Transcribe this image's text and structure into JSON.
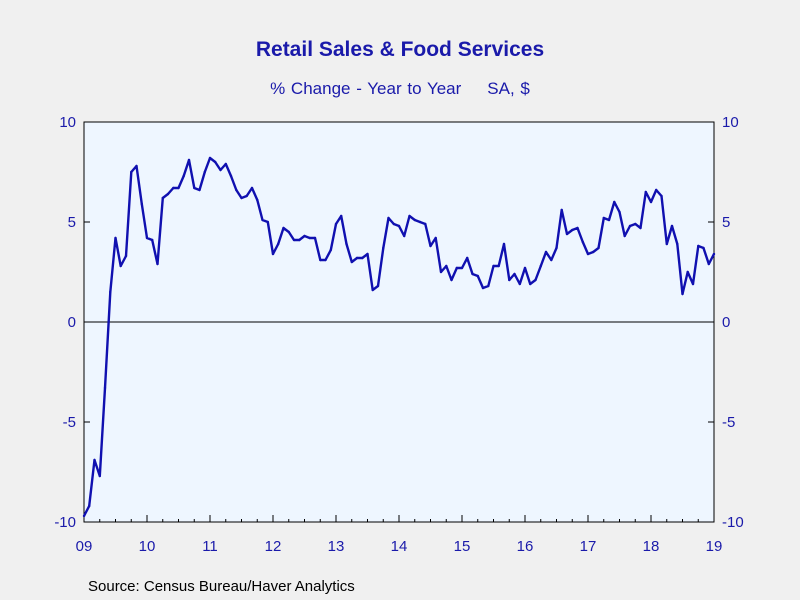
{
  "title": "Retail Sales & Food Services",
  "subtitle_left": "% Change - Year to Year",
  "subtitle_right": "SA, $",
  "source": "Source:  Census Bureau/Haver Analytics",
  "colors": {
    "line": "#1010b0",
    "plot_bg": "#eef6ff",
    "page_bg": "#f0f0f0",
    "title": "#1a1aaa",
    "tick_label": "#1a1aaa"
  },
  "chart_data": {
    "type": "line",
    "title": "Retail Sales & Food Services",
    "subtitle": "% Change - Year to Year    SA, $",
    "xlabel": "",
    "ylabel": "",
    "xlim": [
      2009.0,
      2019.0
    ],
    "ylim": [
      -10,
      10
    ],
    "yticks": [
      -10,
      -5,
      0,
      5,
      10
    ],
    "xtick_labels": [
      "09",
      "10",
      "11",
      "12",
      "13",
      "14",
      "15",
      "16",
      "17",
      "18",
      "19"
    ],
    "secondary_y_axis": true,
    "zero_line": true,
    "grid": false,
    "series": [
      {
        "start": "2009-01",
        "frequency": "monthly",
        "values": [
          -9.7,
          -9.2,
          -6.9,
          -7.7,
          -3.3,
          1.5,
          4.2,
          2.8,
          3.3,
          7.5,
          7.8,
          5.9,
          4.2,
          4.1,
          2.9,
          6.2,
          6.4,
          6.7,
          6.7,
          7.3,
          8.1,
          6.7,
          6.6,
          7.5,
          8.2,
          8.0,
          7.6,
          7.9,
          7.3,
          6.6,
          6.2,
          6.3,
          6.7,
          6.1,
          5.1,
          5.0,
          3.4,
          3.9,
          4.7,
          4.5,
          4.1,
          4.1,
          4.3,
          4.2,
          4.2,
          3.1,
          3.1,
          3.6,
          4.9,
          5.3,
          3.9,
          3.0,
          3.2,
          3.2,
          3.4,
          1.6,
          1.8,
          3.7,
          5.2,
          4.9,
          4.8,
          4.3,
          5.3,
          5.1,
          5.0,
          4.9,
          3.8,
          4.2,
          2.5,
          2.8,
          2.1,
          2.7,
          2.7,
          3.2,
          2.4,
          2.3,
          1.7,
          1.8,
          2.8,
          2.8,
          3.9,
          2.1,
          2.4,
          1.9,
          2.7,
          1.9,
          2.1,
          2.8,
          3.5,
          3.1,
          3.7,
          5.6,
          4.4,
          4.6,
          4.7,
          4.0,
          3.4,
          3.5,
          3.7,
          5.2,
          5.1,
          6.0,
          5.5,
          4.3,
          4.8,
          4.9,
          4.7,
          6.5,
          6.0,
          6.6,
          6.3,
          3.9,
          4.8,
          3.9,
          1.4,
          2.5,
          1.9,
          3.8,
          3.7,
          2.9,
          3.4
        ]
      }
    ]
  }
}
